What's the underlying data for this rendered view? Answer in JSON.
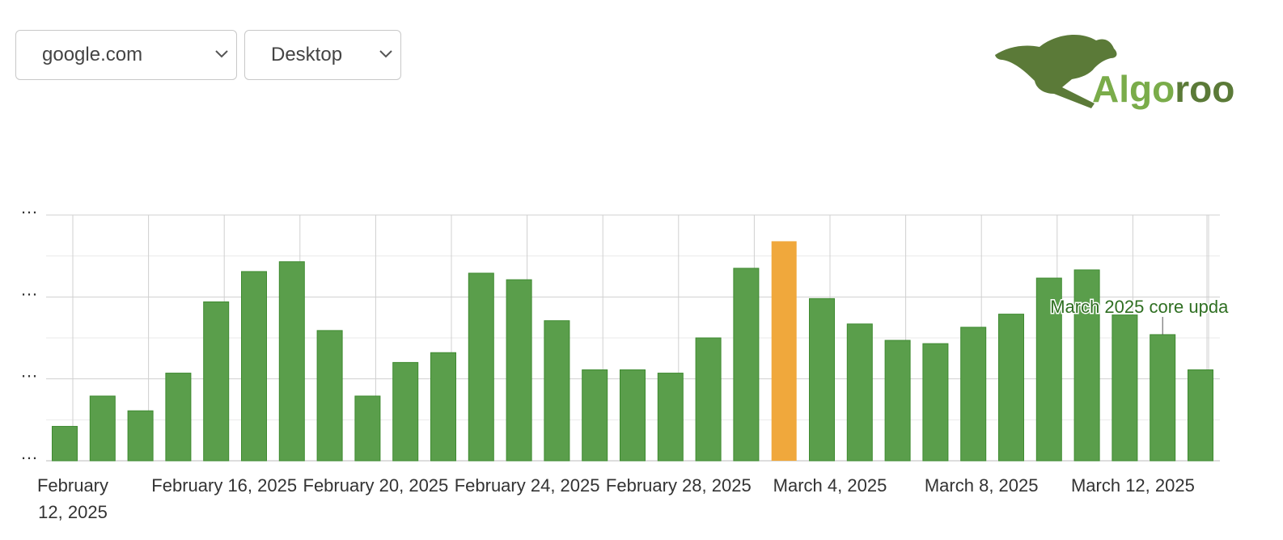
{
  "controls": {
    "domain": "google.com",
    "device": "Desktop"
  },
  "logo": [
    "Algo",
    "roo"
  ],
  "chart_data": {
    "type": "bar",
    "categories": [
      "February 12, 2025",
      null,
      null,
      null,
      "February 16, 2025",
      null,
      null,
      null,
      "February 20, 2025",
      null,
      null,
      null,
      "February 24, 2025",
      null,
      null,
      null,
      "February 28, 2025",
      null,
      null,
      null,
      "March 4, 2025",
      null,
      null,
      null,
      "March 8, 2025",
      null,
      null,
      null,
      "March 12, 2025",
      null,
      null
    ],
    "values": [
      0.42,
      0.79,
      0.61,
      1.07,
      1.94,
      2.31,
      2.43,
      1.59,
      0.79,
      1.2,
      1.32,
      2.29,
      2.21,
      1.71,
      1.11,
      1.11,
      1.07,
      1.5,
      2.35,
      2.68,
      1.98,
      1.67,
      1.47,
      1.43,
      1.63,
      1.79,
      2.23,
      2.33,
      1.78,
      1.54,
      1.11
    ],
    "colors": [
      "#5a9e4b",
      "#5a9e4b",
      "#5a9e4b",
      "#5a9e4b",
      "#5a9e4b",
      "#5a9e4b",
      "#5a9e4b",
      "#5a9e4b",
      "#5a9e4b",
      "#5a9e4b",
      "#5a9e4b",
      "#5a9e4b",
      "#5a9e4b",
      "#5a9e4b",
      "#5a9e4b",
      "#5a9e4b",
      "#5a9e4b",
      "#5a9e4b",
      "#5a9e4b",
      "#f0a83c",
      "#5a9e4b",
      "#5a9e4b",
      "#5a9e4b",
      "#5a9e4b",
      "#5a9e4b",
      "#5a9e4b",
      "#5a9e4b",
      "#5a9e4b",
      "#5a9e4b",
      "#5a9e4b",
      "#5a9e4b"
    ],
    "ylim": [
      0,
      3
    ],
    "yticks": [
      {
        "value": 0,
        "label": "…"
      },
      {
        "value": 1,
        "label": "…"
      },
      {
        "value": 2,
        "label": "…"
      },
      {
        "value": 3,
        "label": "…"
      }
    ],
    "minor_yticks": [
      0.5,
      1.5,
      2.5
    ],
    "grid": true,
    "annotation": {
      "text": "March 2025 core upda",
      "index": 29
    }
  }
}
